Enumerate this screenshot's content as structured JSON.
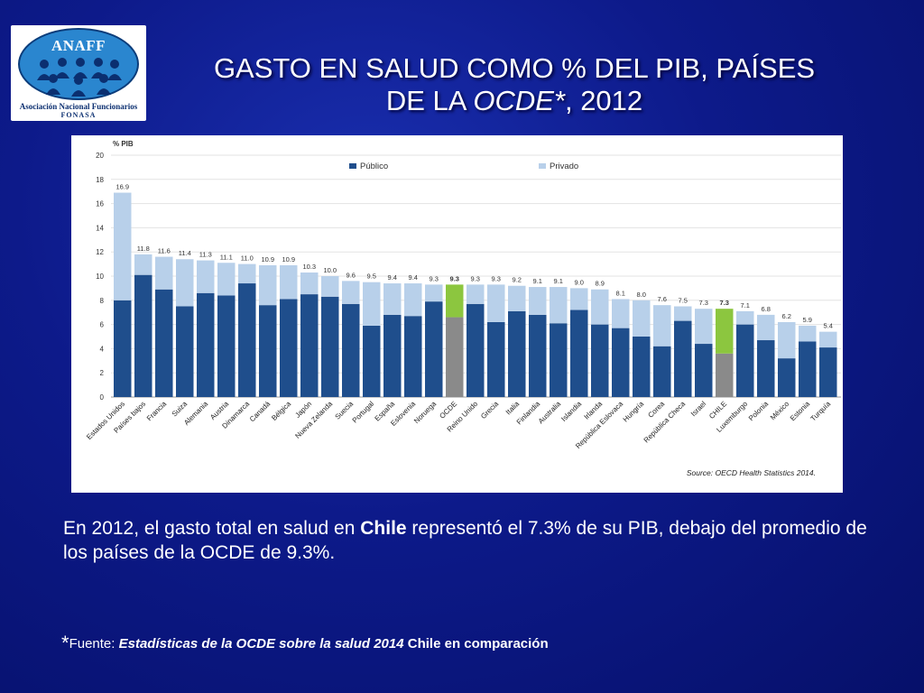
{
  "logo": {
    "name": "ANAFF",
    "subtitle_1": "Asociación Nacional Funcionarios",
    "subtitle_2": "FONASA",
    "oval_color": "#2a86cf"
  },
  "title": {
    "line1": "GASTO EN SALUD COMO % DEL PIB, PAÍSES",
    "line2_prefix": "DE LA ",
    "line2_italic": "OCDE*",
    "line2_suffix": ", 2012"
  },
  "body": {
    "part1": "En 2012, el gasto total en salud en ",
    "bold": "Chile",
    "part2": " representó el 7.3% de su PIB, debajo del promedio de los países de la OCDE de 9.3%."
  },
  "footnote": {
    "star": "*",
    "label": "Fuente: ",
    "italic": "Estadísticas de la OCDE sobre la salud 2014",
    "suffix": " Chile en comparación"
  },
  "chart_data": {
    "type": "bar",
    "stacked": true,
    "ylabel": "% PIB",
    "ylim": [
      0,
      20
    ],
    "yticks": [
      0,
      2,
      4,
      6,
      8,
      10,
      12,
      14,
      16,
      18,
      20
    ],
    "source": "Source: OECD Health Statistics 2014.",
    "legend": {
      "placement": "top",
      "items": [
        "Público",
        "Privado"
      ]
    },
    "colors": {
      "public": "#1f4e8c",
      "private": "#b8d0ea",
      "highlight_public": "#8a8a8a",
      "highlight_private": "#8cc63f"
    },
    "highlight": [
      "OCDE",
      "CHILE"
    ],
    "categories": [
      "Estados Unidos",
      "Países bajos",
      "Francia",
      "Suiza",
      "Alemania",
      "Austria",
      "Dinamarca",
      "Canadá",
      "Bélgica",
      "Japón",
      "Nueva Zelanda",
      "Suecia",
      "Portugal",
      "España",
      "Eslovenia",
      "Noruega",
      "OCDE",
      "Reino Unido",
      "Grecia",
      "Italia",
      "Finlandia",
      "Australia",
      "Islandia",
      "Irlanda",
      "República Eslovaca",
      "Hungría",
      "Corea",
      "República Checa",
      "Israel",
      "CHILE",
      "Luxemburgo",
      "Polonia",
      "México",
      "Estonia",
      "Turquía"
    ],
    "totals": [
      "16.9",
      "11.8",
      "11.6",
      "11.4",
      "11.3",
      "11.1",
      "11.0",
      "10.9",
      "10.9",
      "10.3",
      "10.0",
      "9.6",
      "9.5",
      "9.4",
      "9.4",
      "9.3",
      "9.3",
      "9.3",
      "9.3",
      "9.2",
      "9.1",
      "9.1",
      "9.0",
      "8.9",
      "8.1",
      "8.0",
      "7.6",
      "7.5",
      "7.3",
      "7.3",
      "7.1",
      "6.8",
      "6.2",
      "5.9",
      "5.4"
    ],
    "series": [
      {
        "name": "Público",
        "values": [
          8.0,
          10.1,
          8.9,
          7.5,
          8.6,
          8.4,
          9.4,
          7.6,
          8.1,
          8.5,
          8.3,
          7.7,
          5.9,
          6.8,
          6.7,
          7.9,
          6.6,
          7.7,
          6.2,
          7.1,
          6.8,
          6.1,
          7.2,
          6.0,
          5.7,
          5.0,
          4.2,
          6.3,
          4.4,
          3.6,
          6.0,
          4.7,
          3.2,
          4.6,
          4.1
        ]
      },
      {
        "name": "Privado",
        "values": [
          8.9,
          1.7,
          2.7,
          3.9,
          2.7,
          2.7,
          1.6,
          3.3,
          2.8,
          1.8,
          1.7,
          1.9,
          3.6,
          2.6,
          2.7,
          1.4,
          2.7,
          1.6,
          3.1,
          2.1,
          2.3,
          3.0,
          1.8,
          2.9,
          2.4,
          3.0,
          3.4,
          1.2,
          2.9,
          3.7,
          1.1,
          2.1,
          3.0,
          1.3,
          1.3
        ]
      }
    ]
  }
}
